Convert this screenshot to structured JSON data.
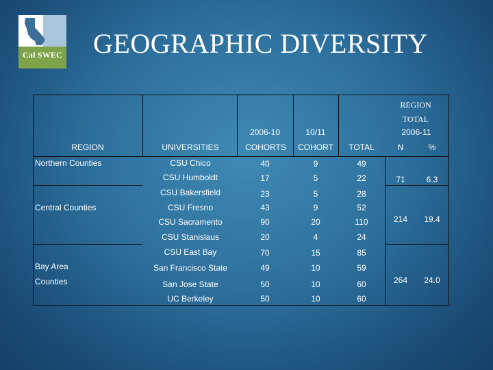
{
  "logo": {
    "text": "Cal SWEC"
  },
  "title": "GEOGRAPHIC DIVERSITY",
  "table": {
    "header": {
      "region_total_line1": "REGION",
      "region_total_line2": "TOTAL",
      "years_col1": "2006-10",
      "years_col2": "10/11",
      "years_total": "2006-11",
      "region": "REGION",
      "universities": "UNIVERSITIES",
      "cohorts": "COHORTS",
      "cohort": "COHORT",
      "total": "TOTAL",
      "n": "N",
      "pct": "%"
    },
    "regions": [
      {
        "name": "Northern Counties",
        "n": "71",
        "pct": "6.3"
      },
      {
        "name": "Central Counties",
        "n": "214",
        "pct": "19.4"
      },
      {
        "name_line1": "Bay Area",
        "name_line2": "Counties",
        "n": "264",
        "pct": "24.0"
      }
    ],
    "rows": [
      {
        "university": "CSU Chico",
        "cohorts": "40",
        "cohort": "9",
        "total": "49"
      },
      {
        "university": "CSU Humboldt",
        "cohorts": "17",
        "cohort": "5",
        "total": "22"
      },
      {
        "university": "CSU Bakersfield",
        "cohorts": "23",
        "cohort": "5",
        "total": "28"
      },
      {
        "university": "CSU Fresno",
        "cohorts": "43",
        "cohort": "9",
        "total": "52"
      },
      {
        "university": "CSU Sacramento",
        "cohorts": "90",
        "cohort": "20",
        "total": "110"
      },
      {
        "university": "CSU Stanislaus",
        "cohorts": "20",
        "cohort": "4",
        "total": "24"
      },
      {
        "university": "CSU East Bay",
        "cohorts": "70",
        "cohort": "15",
        "total": "85"
      },
      {
        "university": "San Francisco State",
        "cohorts": "49",
        "cohort": "10",
        "total": "59"
      },
      {
        "university": "San Jose State",
        "cohorts": "50",
        "cohort": "10",
        "total": "60"
      },
      {
        "university": "UC Berkeley",
        "cohorts": "50",
        "cohort": "10",
        "total": "60"
      }
    ]
  }
}
